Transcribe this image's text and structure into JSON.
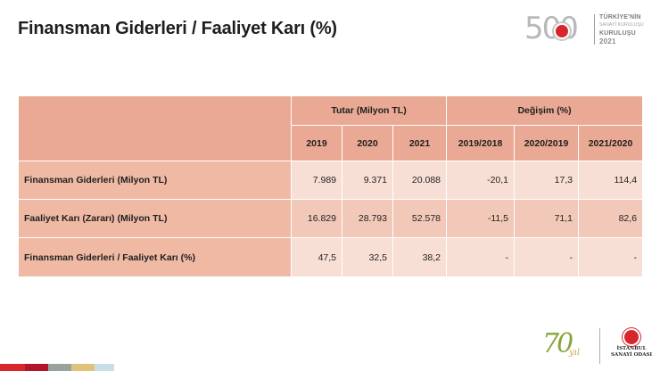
{
  "title": "Finansman Giderleri / Faaliyet Karı (%)",
  "logo_top": {
    "number": "500",
    "line1": "TÜRKİYE'NİN",
    "line2": "SANAYİ KURULUŞU",
    "line3": "KURULUŞU",
    "year": "2021"
  },
  "logo_bottom": {
    "anniversary": "70",
    "yil": "yıl",
    "org_line1": "İSTANBUL",
    "org_line2": "SANAYİ ODASI"
  },
  "table": {
    "group_headers": [
      "Tutar (Milyon TL)",
      "Değişim (%)"
    ],
    "columns": [
      "2019",
      "2020",
      "2021",
      "2019/2018",
      "2020/2019",
      "2021/2020"
    ],
    "rows": [
      {
        "label": "Finansman Giderleri (Milyon TL)",
        "values": [
          "7.989",
          "9.371",
          "20.088",
          "-20,1",
          "17,3",
          "114,4"
        ]
      },
      {
        "label": "Faaliyet Karı (Zararı) (Milyon TL)",
        "values": [
          "16.829",
          "28.793",
          "52.578",
          "-11,5",
          "71,1",
          "82,6"
        ]
      },
      {
        "label": "Finansman Giderleri / Faaliyet Karı (%)",
        "values": [
          "47,5",
          "32,5",
          "38,2",
          "-",
          "-",
          "-"
        ]
      }
    ]
  }
}
